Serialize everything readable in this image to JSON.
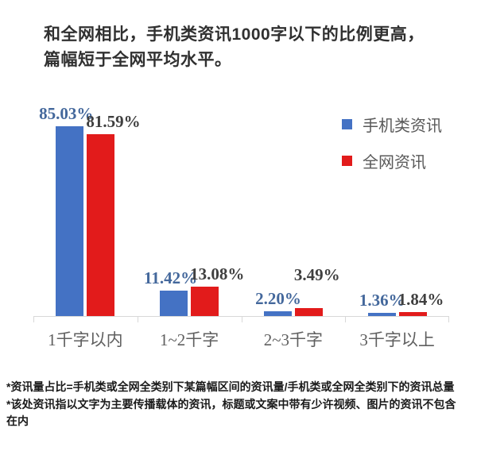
{
  "title": {
    "text": "和全网相比，手机类资讯1000字以下的比例更高，篇幅短于全网平均水平。"
  },
  "legend": [
    {
      "label": "手机类资讯",
      "color": "#4472C4"
    },
    {
      "label": "全网资讯",
      "color": "#E21B1B"
    }
  ],
  "chart_data": {
    "type": "bar",
    "title": "和全网相比，手机类资讯1000字以下的比例更高，篇幅短于全网平均水平。",
    "categories": [
      "1千字以内",
      "1~2千字",
      "2~3千字",
      "3千字以上"
    ],
    "series": [
      {
        "name": "手机类资讯",
        "color": "#4472C4",
        "label_color": "#44689C",
        "values": [
          85.03,
          11.42,
          2.2,
          1.36
        ],
        "labels": [
          "85.03%",
          "11.42%",
          "2.20%",
          "1.36%"
        ]
      },
      {
        "name": "全网资讯",
        "color": "#E21B1B",
        "label_color": "#3F3F3F",
        "values": [
          81.59,
          13.08,
          3.49,
          1.84
        ],
        "labels": [
          "81.59%",
          "13.08%",
          "3.49%",
          "1.84%"
        ]
      }
    ],
    "xlabel": "",
    "ylabel": "",
    "ylim": [
      0,
      90
    ],
    "grid": false,
    "legend_position": "top-right",
    "axis_color": "#D8D8D8"
  },
  "footnotes": [
    "*资讯量占比=手机类或全网全类别下某篇幅区间的资讯量/手机类或全网全类别下的资讯总量",
    "*该处资讯指以文字为主要传播载体的资讯，标题或文案中带有少许视频、图片的资讯不包含在内"
  ]
}
